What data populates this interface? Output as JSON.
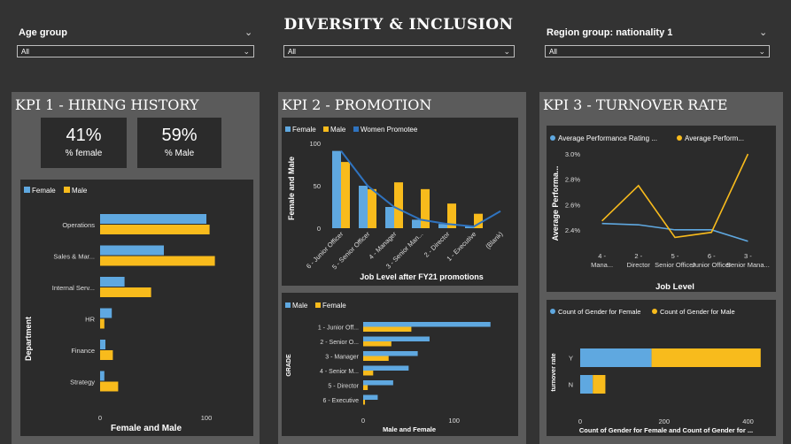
{
  "header": {
    "title": "DIVERSITY & INCLUSION"
  },
  "filters": [
    {
      "label": "Age group",
      "value": "All"
    },
    {
      "value": "All"
    },
    {
      "label": "Region group: nationality 1",
      "value": "All"
    }
  ],
  "kpi1": {
    "title": "KPI 1 - HIRING HISTORY",
    "cards": [
      {
        "value": "41%",
        "label": "% female"
      },
      {
        "value": "59%",
        "label": "% Male"
      }
    ],
    "chart": {
      "legend": [
        "Female",
        "Male"
      ],
      "xlabel": "Female and Male",
      "ylabel": "Department"
    }
  },
  "kpi2": {
    "title": "KPI 2 - PROMOTION",
    "top": {
      "legend": [
        "Female",
        "Male",
        "Women Promotee"
      ],
      "xlabel": "Job Level after FY21 promotions",
      "ylabel": "Female and Male"
    },
    "bottom": {
      "legend": [
        "Male",
        "Female"
      ],
      "xlabel": "Male and Female",
      "ylabel": "GRADE"
    }
  },
  "kpi3": {
    "title": "KPI 3 - TURNOVER RATE",
    "top": {
      "legend": [
        "Average Performance Rating ...",
        "Average Perform..."
      ],
      "xlabel": "Job Level",
      "ylabel": "Average Performa..."
    },
    "bottom": {
      "legend": [
        "Count of Gender for Female",
        "Count of Gender for Male"
      ],
      "xlabel": "Count of Gender for Female and Count of Gender for ...",
      "ylabel": "turnover rate"
    }
  },
  "colors": {
    "female": "#5fa8e0",
    "male": "#f8bb1c",
    "promotee": "#2f73bf",
    "panel": "#5b5b5b",
    "card": "#2b2b2b"
  },
  "chart_data": [
    {
      "type": "bar",
      "title": "",
      "orientation": "horizontal",
      "categories": [
        "Operations",
        "Sales & Mar...",
        "Internal Serv...",
        "HR",
        "Finance",
        "Strategy"
      ],
      "series": [
        {
          "name": "Female",
          "values": [
            100,
            60,
            23,
            11,
            5,
            4
          ]
        },
        {
          "name": "Male",
          "values": [
            103,
            108,
            48,
            4,
            12,
            17
          ]
        }
      ],
      "xlabel": "Female and Male",
      "ylabel": "Department",
      "xticks": [
        "0",
        "100"
      ],
      "xlim": [
        0,
        110
      ]
    },
    {
      "type": "bar",
      "title": "",
      "categories": [
        "6 - Junior Officer",
        "5 - Senior Officer",
        "4 - Manager",
        "3 - Senior Man...",
        "2 - Director",
        "1 - Executive",
        "(Blank)"
      ],
      "series": [
        {
          "name": "Female",
          "values": [
            91,
            50,
            25,
            10,
            5,
            2,
            0
          ]
        },
        {
          "name": "Male",
          "values": [
            78,
            46,
            54,
            46,
            29,
            17,
            0
          ]
        },
        {
          "name": "Women Promotee",
          "type": "line",
          "values": [
            91,
            50,
            25,
            10,
            5,
            2,
            20
          ]
        }
      ],
      "yticks": [
        "0",
        "50",
        "100"
      ],
      "ylim": [
        0,
        100
      ],
      "xlabel": "Job Level after FY21 promotions",
      "ylabel": "Female and Male"
    },
    {
      "type": "bar",
      "title": "",
      "orientation": "horizontal",
      "categories": [
        "1 - Junior Off...",
        "2 - Senior O...",
        "3 - Manager",
        "4 - Senior M...",
        "5 - Director",
        "6 - Executive"
      ],
      "series": [
        {
          "name": "Male",
          "values": [
            140,
            73,
            60,
            50,
            33,
            16
          ]
        },
        {
          "name": "Female",
          "values": [
            53,
            31,
            28,
            11,
            5,
            2
          ]
        }
      ],
      "xticks": [
        "0",
        "100"
      ],
      "xlim": [
        0,
        150
      ],
      "xlabel": "Male and Female",
      "ylabel": "GRADE"
    },
    {
      "type": "line",
      "title": "",
      "categories": [
        "4 - Mana...",
        "2 - Director",
        "5 - Senior Officer",
        "6 - Junior Officer",
        "3 - Senior Mana..."
      ],
      "series": [
        {
          "name": "Average Performance Rating ...",
          "values": [
            2.45,
            2.44,
            2.4,
            2.4,
            2.31
          ]
        },
        {
          "name": "Average Perform...",
          "values": [
            2.47,
            2.75,
            2.34,
            2.38,
            3.0
          ]
        }
      ],
      "yticks": [
        "2.4%",
        "2.6%",
        "2.8%",
        "3.0%"
      ],
      "ylim": [
        2.28,
        3.05
      ],
      "xlabel": "Job Level",
      "ylabel": "Average Performa..."
    },
    {
      "type": "bar",
      "title": "",
      "orientation": "horizontal",
      "stacked": true,
      "categories": [
        "Y",
        "N"
      ],
      "series": [
        {
          "name": "Count of Gender for Female",
          "values": [
            170,
            30
          ]
        },
        {
          "name": "Count of Gender for Male",
          "values": [
            260,
            30
          ]
        }
      ],
      "xticks": [
        "0",
        "200",
        "400"
      ],
      "xlim": [
        0,
        460
      ],
      "xlabel": "Count of Gender for Female and Count of Gender for ...",
      "ylabel": "turnover rate"
    }
  ]
}
